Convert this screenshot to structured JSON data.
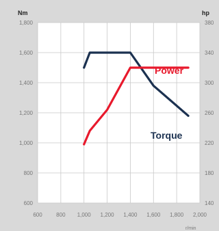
{
  "colors": {
    "background": "#d9d9d9",
    "plot_area": "#ffffff",
    "grid": "#c8c8c8",
    "torque": "#1b3150",
    "power": "#e8192c"
  },
  "chart_data": {
    "type": "line",
    "left_unit": "Nm",
    "right_unit": "hp",
    "x_unit": "r/min",
    "grid": true,
    "x_ticks": [
      "600",
      "800",
      "1,000",
      "1,200",
      "1,400",
      "1,600",
      "1,800",
      "2,000"
    ],
    "y_ticks": [
      "600",
      "800",
      "1,000",
      "1,200",
      "1,400",
      "1,600",
      "1,800"
    ],
    "y2_ticks": [
      "140",
      "180",
      "220",
      "260",
      "300",
      "340",
      "380"
    ],
    "xlim": [
      600,
      2000
    ],
    "ylim": [
      600,
      1800
    ],
    "y2lim": [
      140,
      380
    ],
    "series": [
      {
        "name": "Torque",
        "axis": "left",
        "x": [
          1000,
          1050,
          1400,
          1600,
          1900
        ],
        "y": [
          1500,
          1600,
          1600,
          1380,
          1180
        ]
      },
      {
        "name": "Power",
        "axis": "right",
        "x": [
          1000,
          1050,
          1200,
          1400,
          1900
        ],
        "y": [
          218,
          236,
          264,
          320,
          320
        ]
      }
    ]
  }
}
